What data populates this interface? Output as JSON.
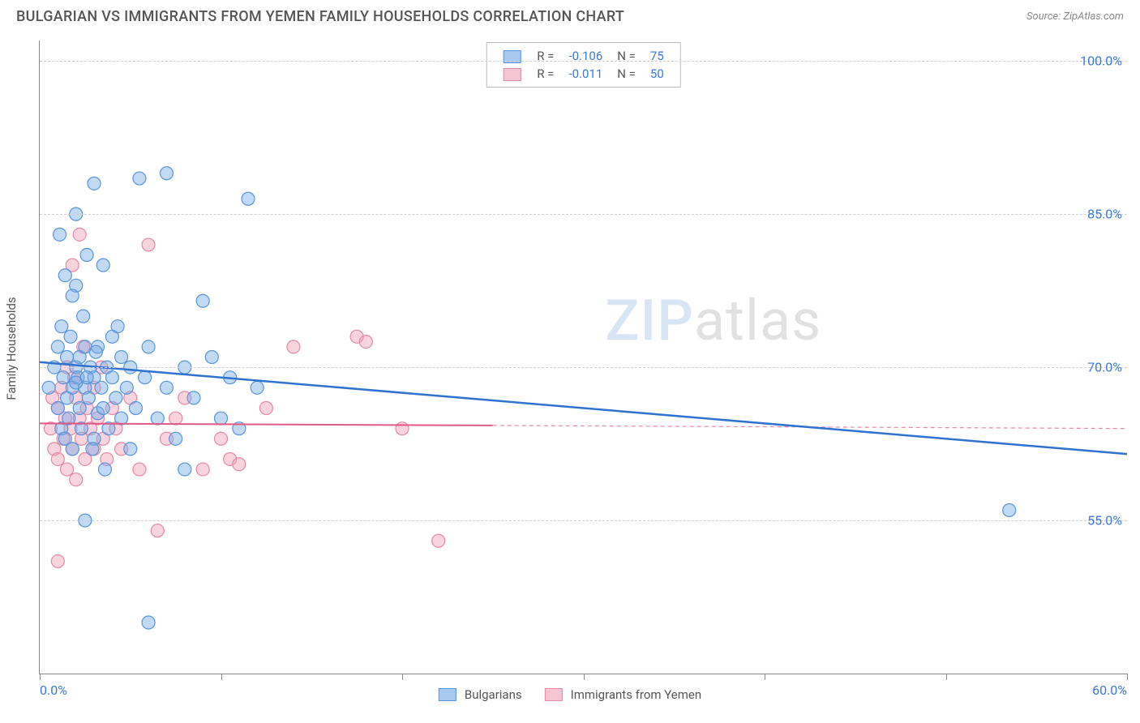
{
  "header": {
    "title": "BULGARIAN VS IMMIGRANTS FROM YEMEN FAMILY HOUSEHOLDS CORRELATION CHART",
    "source": "Source: ZipAtlas.com"
  },
  "axes": {
    "ylabel": "Family Households",
    "xlim": [
      0,
      60
    ],
    "ylim": [
      40,
      102
    ],
    "yticks": [
      {
        "value": 55.0,
        "label": "55.0%"
      },
      {
        "value": 70.0,
        "label": "70.0%"
      },
      {
        "value": 85.0,
        "label": "85.0%"
      },
      {
        "value": 100.0,
        "label": "100.0%"
      }
    ],
    "xticks_major": [
      0,
      10,
      20,
      30,
      40,
      50,
      60
    ],
    "xtick_labels": [
      {
        "value": 0,
        "label": "0.0%"
      },
      {
        "value": 60,
        "label": "60.0%"
      }
    ]
  },
  "legend_top": {
    "rows": [
      {
        "swatch_fill": "#a8c8ef",
        "swatch_border": "#5a94db",
        "r_label": "R =",
        "r_val": "-0.106",
        "n_label": "N =",
        "n_val": "75"
      },
      {
        "swatch_fill": "#f6c5d3",
        "swatch_border": "#e48aa6",
        "r_label": "R =",
        "r_val": "-0.011",
        "n_label": "N =",
        "n_val": "50"
      }
    ]
  },
  "legend_bottom": {
    "items": [
      {
        "swatch_fill": "#a8c8ef",
        "swatch_border": "#5a94db",
        "label": "Bulgarians"
      },
      {
        "swatch_fill": "#f6c5d3",
        "swatch_border": "#e48aa6",
        "label": "Immigrants from Yemen"
      }
    ]
  },
  "watermark": {
    "zip": "ZIP",
    "atlas": "atlas"
  },
  "series": {
    "bulgarians": {
      "color_fill": "rgba(120,170,230,0.45)",
      "color_stroke": "#5a94db",
      "marker_r": 8,
      "trend": {
        "x1": 0,
        "y1": 70.5,
        "x2": 60,
        "y2": 61.5,
        "stroke": "#2f72cf",
        "width": 2.5
      },
      "points": [
        [
          0.5,
          68
        ],
        [
          0.8,
          70
        ],
        [
          1.0,
          66
        ],
        [
          1.0,
          72
        ],
        [
          1.2,
          64
        ],
        [
          1.2,
          74
        ],
        [
          1.3,
          69
        ],
        [
          1.4,
          63
        ],
        [
          1.5,
          71
        ],
        [
          1.5,
          67
        ],
        [
          1.6,
          65
        ],
        [
          1.7,
          73
        ],
        [
          1.8,
          68
        ],
        [
          1.8,
          62
        ],
        [
          2.0,
          70
        ],
        [
          2.0,
          78
        ],
        [
          2.0,
          85
        ],
        [
          2.1,
          69
        ],
        [
          2.2,
          66
        ],
        [
          2.2,
          71
        ],
        [
          2.3,
          64
        ],
        [
          2.4,
          75
        ],
        [
          2.5,
          68
        ],
        [
          2.5,
          72
        ],
        [
          2.6,
          81
        ],
        [
          2.7,
          67
        ],
        [
          2.8,
          70
        ],
        [
          3.0,
          63
        ],
        [
          3.0,
          69
        ],
        [
          3.0,
          88
        ],
        [
          3.2,
          65.5
        ],
        [
          3.2,
          72
        ],
        [
          3.4,
          68
        ],
        [
          3.5,
          66
        ],
        [
          3.5,
          80
        ],
        [
          3.7,
          70
        ],
        [
          3.8,
          64
        ],
        [
          4.0,
          69
        ],
        [
          4.0,
          73
        ],
        [
          4.2,
          67
        ],
        [
          4.5,
          71
        ],
        [
          4.5,
          65
        ],
        [
          4.8,
          68
        ],
        [
          5.0,
          70
        ],
        [
          5.0,
          62
        ],
        [
          5.3,
          66
        ],
        [
          5.5,
          88.5
        ],
        [
          5.8,
          69
        ],
        [
          6.0,
          45
        ],
        [
          6.0,
          72
        ],
        [
          6.5,
          65
        ],
        [
          7.0,
          68
        ],
        [
          7.0,
          89
        ],
        [
          7.5,
          63
        ],
        [
          8.0,
          70
        ],
        [
          8.0,
          60
        ],
        [
          8.5,
          67
        ],
        [
          9.0,
          76.5
        ],
        [
          9.5,
          71
        ],
        [
          10.0,
          65
        ],
        [
          10.5,
          69
        ],
        [
          11.0,
          64
        ],
        [
          11.5,
          86.5
        ],
        [
          12.0,
          68
        ],
        [
          2.5,
          55
        ],
        [
          1.8,
          77
        ],
        [
          3.6,
          60
        ],
        [
          1.4,
          79
        ],
        [
          2.9,
          62
        ],
        [
          4.3,
          74
        ],
        [
          1.1,
          83
        ],
        [
          53.5,
          56
        ],
        [
          2.0,
          68.5
        ],
        [
          3.1,
          71.5
        ],
        [
          2.6,
          69
        ]
      ]
    },
    "yemen": {
      "color_fill": "rgba(240,160,185,0.45)",
      "color_stroke": "#e48aa6",
      "marker_r": 8,
      "trend_solid": {
        "x1": 0,
        "y1": 64.5,
        "x2": 25,
        "y2": 64.3,
        "stroke": "#e05a86",
        "width": 2
      },
      "trend_dash": {
        "x1": 25,
        "y1": 64.3,
        "x2": 60,
        "y2": 64.0,
        "stroke": "#e48aa6",
        "width": 1.2,
        "dash": "5,4"
      },
      "points": [
        [
          0.6,
          64
        ],
        [
          0.8,
          62
        ],
        [
          1.0,
          66
        ],
        [
          1.0,
          61
        ],
        [
          1.2,
          68
        ],
        [
          1.3,
          63
        ],
        [
          1.4,
          65
        ],
        [
          1.5,
          60
        ],
        [
          1.5,
          70
        ],
        [
          1.7,
          64
        ],
        [
          1.8,
          62
        ],
        [
          1.8,
          80
        ],
        [
          2.0,
          67
        ],
        [
          2.0,
          59
        ],
        [
          2.2,
          65
        ],
        [
          2.3,
          63
        ],
        [
          2.4,
          72
        ],
        [
          2.5,
          61
        ],
        [
          2.6,
          66
        ],
        [
          2.8,
          64
        ],
        [
          3.0,
          62
        ],
        [
          3.0,
          68
        ],
        [
          3.2,
          65
        ],
        [
          3.4,
          70
        ],
        [
          3.5,
          63
        ],
        [
          3.7,
          61
        ],
        [
          4.0,
          66
        ],
        [
          4.2,
          64
        ],
        [
          4.5,
          62
        ],
        [
          5.0,
          67
        ],
        [
          5.5,
          60
        ],
        [
          6.0,
          82
        ],
        [
          6.5,
          54
        ],
        [
          7.0,
          63
        ],
        [
          7.5,
          65
        ],
        [
          8.0,
          67
        ],
        [
          9.0,
          60
        ],
        [
          10.0,
          63
        ],
        [
          10.5,
          61
        ],
        [
          11.0,
          60.5
        ],
        [
          12.5,
          66
        ],
        [
          14.0,
          72
        ],
        [
          17.5,
          73
        ],
        [
          18.0,
          72.5
        ],
        [
          20.0,
          64
        ],
        [
          22.0,
          53
        ],
        [
          1.0,
          51
        ],
        [
          2.2,
          83
        ],
        [
          0.7,
          67
        ],
        [
          1.9,
          69
        ]
      ]
    }
  },
  "colors": {
    "axis": "#888888",
    "grid": "#d0d0d0",
    "tick_text": "#3878d8"
  }
}
